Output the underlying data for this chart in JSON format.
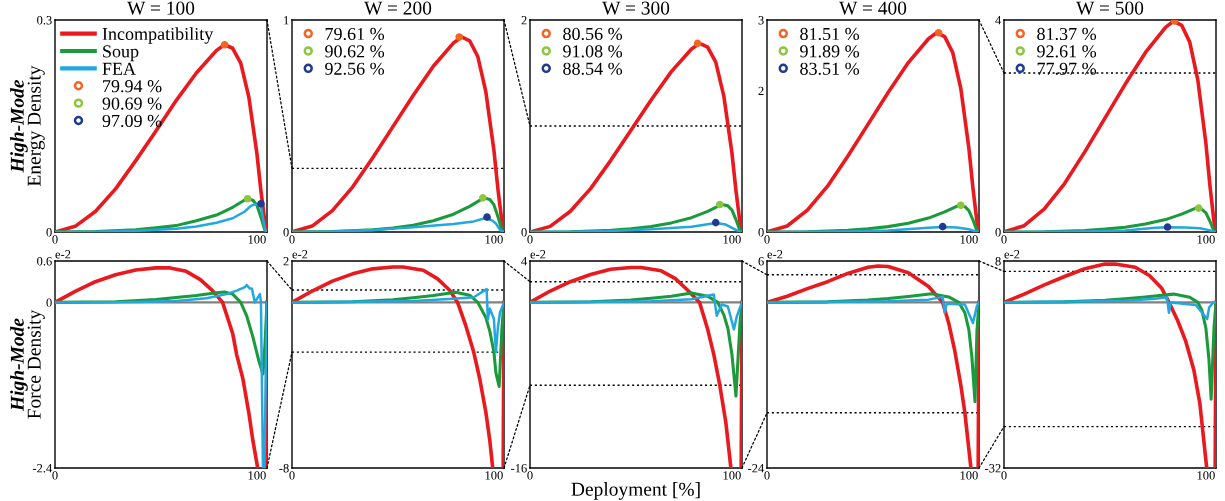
{
  "chart_data": [
    {
      "type": "line",
      "title": "W = 100",
      "ylabel": "High-Mode\nEnergy Density",
      "xlim": [
        0,
        105
      ],
      "xticks": [
        0,
        100
      ],
      "ylim": [
        0,
        0.3
      ],
      "yticks": [
        0,
        0.3
      ],
      "legend": "top left",
      "series": [
        {
          "name": "Incompatibility",
          "color": "#e8191f",
          "x": [
            0,
            10,
            20,
            30,
            40,
            50,
            60,
            70,
            80,
            84,
            88,
            92,
            96,
            100,
            102,
            104,
            105
          ],
          "values": [
            0,
            0.008,
            0.029,
            0.061,
            0.101,
            0.143,
            0.186,
            0.225,
            0.257,
            0.265,
            0.26,
            0.239,
            0.191,
            0.111,
            0.058,
            0.013,
            0
          ]
        },
        {
          "name": "Soup",
          "color": "#1a9a3a",
          "x": [
            0,
            20,
            40,
            50,
            60,
            70,
            80,
            88,
            95,
            98,
            100,
            102,
            104,
            105
          ],
          "values": [
            0,
            0.0005,
            0.003,
            0.006,
            0.009,
            0.016,
            0.024,
            0.035,
            0.047,
            0.045,
            0.038,
            0.021,
            0.002,
            0
          ]
        },
        {
          "name": "FEA",
          "color": "#22a7e0",
          "x": [
            0,
            20,
            40,
            60,
            70,
            80,
            88,
            94,
            97,
            99,
            101,
            102,
            103,
            104,
            105
          ],
          "values": [
            0,
            0.0002,
            0.0016,
            0.0047,
            0.0078,
            0.013,
            0.0195,
            0.029,
            0.037,
            0.039,
            0.039,
            0.036,
            0.02,
            0.004,
            0
          ]
        },
        {
          "name": "79.94 %",
          "type": "scatter",
          "marker": "circle",
          "color": "#f26522",
          "x": [
            84
          ],
          "values": [
            0.265
          ]
        },
        {
          "name": "90.69 %",
          "type": "scatter",
          "marker": "circle",
          "color": "#8cc63f",
          "x": [
            95.4
          ],
          "values": [
            0.047
          ]
        },
        {
          "name": "97.09 %",
          "type": "scatter",
          "marker": "circle",
          "color": "#1f3a93",
          "x": [
            102
          ],
          "values": [
            0.04
          ]
        }
      ]
    },
    {
      "type": "line",
      "title": "W = 200",
      "xlim": [
        0,
        105
      ],
      "xticks": [
        0,
        100
      ],
      "ylim": [
        0,
        1
      ],
      "yticks": [
        0,
        1
      ],
      "legend": "top left",
      "ref_lines": [
        {
          "axis": "y",
          "value": 0.3,
          "color": "#000000",
          "line_style": "dotted"
        }
      ],
      "series": [
        {
          "color": "#e8191f",
          "x": [
            0,
            10,
            20,
            30,
            40,
            50,
            60,
            70,
            80,
            84,
            88,
            92,
            96,
            100,
            102,
            104,
            105
          ],
          "values": [
            0,
            0.028,
            0.101,
            0.212,
            0.35,
            0.497,
            0.644,
            0.782,
            0.892,
            0.92,
            0.902,
            0.828,
            0.662,
            0.386,
            0.202,
            0.046,
            0
          ]
        },
        {
          "color": "#1a9a3a",
          "x": [
            0,
            20,
            40,
            50,
            60,
            70,
            80,
            88,
            95,
            98,
            100,
            102,
            104,
            105
          ],
          "values": [
            0,
            0.002,
            0.01,
            0.019,
            0.032,
            0.053,
            0.084,
            0.121,
            0.161,
            0.153,
            0.129,
            0.072,
            0.008,
            0
          ]
        },
        {
          "color": "#22a7e0",
          "x": [
            0,
            20,
            40,
            60,
            80,
            90,
            96,
            99,
            101,
            103,
            105
          ],
          "values": [
            0,
            0.002,
            0.01,
            0.022,
            0.038,
            0.05,
            0.066,
            0.055,
            0.04,
            0.01,
            0
          ]
        },
        {
          "name": "79.61 %",
          "type": "scatter",
          "marker": "circle",
          "color": "#f26522",
          "x": [
            82.8
          ],
          "values": [
            0.92
          ]
        },
        {
          "name": "90.62 %",
          "type": "scatter",
          "marker": "circle",
          "color": "#8cc63f",
          "x": [
            94.5
          ],
          "values": [
            0.161
          ]
        },
        {
          "name": "92.56 %",
          "type": "scatter",
          "marker": "circle",
          "color": "#1f3a93",
          "x": [
            96.6
          ],
          "values": [
            0.07
          ]
        }
      ]
    },
    {
      "type": "line",
      "title": "W = 300",
      "xlim": [
        0,
        105
      ],
      "xticks": [
        0,
        100
      ],
      "ylim": [
        0,
        2
      ],
      "yticks": [
        0,
        2
      ],
      "legend": "top left",
      "ref_lines": [
        {
          "axis": "y",
          "value": 1,
          "color": "#000000",
          "line_style": "dotted"
        }
      ],
      "series": [
        {
          "color": "#e8191f",
          "x": [
            0,
            10,
            20,
            30,
            40,
            50,
            60,
            70,
            80,
            84,
            88,
            92,
            96,
            100,
            102,
            104,
            105
          ],
          "values": [
            0,
            0.053,
            0.196,
            0.409,
            0.676,
            0.961,
            1.246,
            1.513,
            1.727,
            1.78,
            1.744,
            1.602,
            1.282,
            0.748,
            0.392,
            0.089,
            0
          ]
        },
        {
          "color": "#1a9a3a",
          "x": [
            0,
            20,
            40,
            50,
            60,
            70,
            80,
            88,
            95,
            98,
            100,
            102,
            104,
            105
          ],
          "values": [
            0,
            0.003,
            0.016,
            0.031,
            0.052,
            0.086,
            0.135,
            0.195,
            0.26,
            0.247,
            0.208,
            0.117,
            0.013,
            0
          ]
        },
        {
          "color": "#22a7e0",
          "x": [
            0,
            20,
            40,
            60,
            80,
            92,
            97,
            101,
            104,
            105
          ],
          "values": [
            0,
            0.002,
            0.01,
            0.025,
            0.05,
            0.085,
            0.07,
            0.03,
            0.002,
            0
          ]
        },
        {
          "name": "80.56 %",
          "type": "scatter",
          "marker": "circle",
          "color": "#f26522",
          "x": [
            83
          ],
          "values": [
            1.78
          ]
        },
        {
          "name": "91.08 %",
          "type": "scatter",
          "marker": "circle",
          "color": "#8cc63f",
          "x": [
            94
          ],
          "values": [
            0.26
          ]
        },
        {
          "name": "88.54 %",
          "type": "scatter",
          "marker": "circle",
          "color": "#1f3a93",
          "x": [
            92
          ],
          "values": [
            0.088
          ]
        }
      ]
    },
    {
      "type": "line",
      "title": "W = 400",
      "xlim": [
        0,
        105
      ],
      "xticks": [
        0,
        100
      ],
      "ylim": [
        0,
        3
      ],
      "yticks": [
        0,
        2,
        3
      ],
      "legend": "top left",
      "series": [
        {
          "color": "#e8191f",
          "x": [
            0,
            10,
            20,
            30,
            40,
            50,
            60,
            70,
            80,
            84,
            88,
            92,
            96,
            100,
            102,
            104,
            105
          ],
          "values": [
            0,
            0.085,
            0.31,
            0.649,
            1.072,
            1.523,
            1.974,
            2.397,
            2.735,
            2.82,
            2.764,
            2.538,
            2.03,
            1.184,
            0.62,
            0.141,
            0
          ]
        },
        {
          "color": "#1a9a3a",
          "x": [
            0,
            20,
            40,
            50,
            60,
            70,
            80,
            88,
            95,
            98,
            100,
            102,
            104,
            105
          ],
          "values": [
            0,
            0.004,
            0.023,
            0.045,
            0.076,
            0.125,
            0.197,
            0.284,
            0.378,
            0.359,
            0.302,
            0.17,
            0.019,
            0
          ]
        },
        {
          "color": "#22a7e0",
          "x": [
            0,
            20,
            40,
            60,
            80,
            87,
            94,
            100,
            103,
            105
          ],
          "values": [
            0,
            0.002,
            0.008,
            0.02,
            0.06,
            0.072,
            0.065,
            0.04,
            0.01,
            0
          ]
        },
        {
          "name": "81.51 %",
          "type": "scatter",
          "marker": "circle",
          "color": "#f26522",
          "x": [
            85
          ],
          "values": [
            2.82
          ]
        },
        {
          "name": "91.89 %",
          "type": "scatter",
          "marker": "circle",
          "color": "#8cc63f",
          "x": [
            96
          ],
          "values": [
            0.378
          ]
        },
        {
          "name": "83.51 %",
          "type": "scatter",
          "marker": "circle",
          "color": "#1f3a93",
          "x": [
            87
          ],
          "values": [
            0.076
          ]
        }
      ]
    },
    {
      "type": "line",
      "title": "W = 500",
      "xlim": [
        0,
        105
      ],
      "xticks": [
        0,
        100
      ],
      "ylim": [
        0,
        4
      ],
      "yticks": [
        0,
        4
      ],
      "legend": "top left",
      "ref_lines": [
        {
          "axis": "y",
          "value": 3,
          "color": "#000000",
          "line_style": "dotted"
        }
      ],
      "series": [
        {
          "color": "#e8191f",
          "x": [
            0,
            10,
            20,
            30,
            40,
            50,
            60,
            70,
            80,
            84,
            88,
            92,
            96,
            100,
            102,
            104,
            105
          ],
          "values": [
            0,
            0.119,
            0.438,
            0.915,
            1.512,
            2.149,
            2.786,
            3.383,
            3.861,
            3.98,
            3.9,
            3.582,
            2.866,
            1.672,
            0.876,
            0.199,
            0
          ]
        },
        {
          "color": "#1a9a3a",
          "x": [
            0,
            20,
            40,
            50,
            60,
            70,
            80,
            88,
            95,
            98,
            100,
            102,
            104,
            105
          ],
          "values": [
            0,
            0.005,
            0.027,
            0.054,
            0.09,
            0.149,
            0.234,
            0.338,
            0.45,
            0.428,
            0.36,
            0.203,
            0.023,
            0
          ]
        },
        {
          "color": "#22a7e0",
          "x": [
            0,
            20,
            40,
            60,
            75,
            81,
            90,
            97,
            101,
            104,
            105
          ],
          "values": [
            0,
            0.003,
            0.01,
            0.03,
            0.08,
            0.09,
            0.085,
            0.07,
            0.04,
            0.005,
            0
          ]
        },
        {
          "name": "81.37 %",
          "type": "scatter",
          "marker": "circle",
          "color": "#f26522",
          "x": [
            84.5
          ],
          "values": [
            3.98
          ]
        },
        {
          "name": "92.61 %",
          "type": "scatter",
          "marker": "circle",
          "color": "#8cc63f",
          "x": [
            96.4
          ],
          "values": [
            0.45
          ]
        },
        {
          "name": "77.97 %",
          "type": "scatter",
          "marker": "circle",
          "color": "#1f3a93",
          "x": [
            81
          ],
          "values": [
            0.093
          ]
        }
      ]
    },
    {
      "type": "line",
      "ylabel": "High-Mode\nForce Density",
      "xlim": [
        0,
        105
      ],
      "xticks": [
        0,
        100
      ],
      "ylim": [
        -2.4,
        0.6
      ],
      "yticks": [
        -2.4,
        0,
        0.6
      ],
      "annotations": [
        "e-2"
      ],
      "ref_lines": [
        {
          "axis": "y",
          "value": 0,
          "color": "#808080",
          "line_style": "solid"
        }
      ],
      "series": [
        {
          "color": "#e8191f",
          "x": [
            0,
            10,
            20,
            30,
            40,
            50,
            57,
            65,
            72,
            78,
            83,
            88,
            90,
            93,
            96,
            98,
            100.4,
            102,
            104.6,
            105
          ],
          "values": [
            0,
            0.16,
            0.3,
            0.4,
            0.47,
            0.5,
            0.5,
            0.45,
            0.33,
            0.17,
            0,
            -0.45,
            -0.76,
            -1.1,
            -1.6,
            -2.0,
            -2.4,
            null,
            -2.4,
            0
          ]
        },
        {
          "color": "#1a9a3a",
          "x": [
            0,
            30,
            50,
            60,
            70,
            80,
            84,
            88,
            92,
            95,
            98,
            101,
            103,
            104,
            105
          ],
          "values": [
            0,
            0.01,
            0.04,
            0.07,
            0.1,
            0.14,
            0.15,
            0.12,
            0,
            -0.2,
            -0.5,
            -0.85,
            -1.04,
            -0.6,
            0
          ]
        },
        {
          "color": "#22a7e0",
          "x": [
            0,
            40,
            60,
            75,
            85,
            90,
            94,
            95,
            96.5,
            97.5,
            99,
            100,
            101.5,
            102,
            103,
            103.7,
            104.3,
            105
          ],
          "values": [
            0,
            0.005,
            0.02,
            0.06,
            0.12,
            0.17,
            0.22,
            0.25,
            0.2,
            0.2,
            0,
            0.05,
            0.12,
            0,
            -2.4,
            -2.4,
            -1.3,
            0
          ]
        }
      ]
    },
    {
      "type": "line",
      "xlim": [
        0,
        105
      ],
      "xticks": [
        0,
        100
      ],
      "ylim": [
        -8,
        2
      ],
      "yticks": [
        -8,
        2
      ],
      "annotations": [
        "e-2"
      ],
      "ref_lines": [
        {
          "axis": "y",
          "value": 0,
          "color": "#808080",
          "line_style": "solid"
        },
        {
          "axis": "y",
          "value": 0.6,
          "color": "#000000",
          "line_style": "dotted"
        },
        {
          "axis": "y",
          "value": -2.4,
          "color": "#000000",
          "line_style": "dotted"
        }
      ],
      "series": [
        {
          "color": "#e8191f",
          "x": [
            0,
            10,
            20,
            30,
            40,
            50,
            55,
            65,
            72,
            78,
            82,
            86,
            90,
            93,
            96,
            98,
            99.4,
            102,
            104.6,
            105
          ],
          "values": [
            0,
            0.55,
            1.03,
            1.38,
            1.62,
            1.71,
            1.71,
            1.55,
            1.15,
            0.6,
            0,
            -1.1,
            -2.4,
            -3.7,
            -5.3,
            -6.7,
            -8,
            null,
            -8,
            0
          ]
        },
        {
          "color": "#1a9a3a",
          "x": [
            0,
            30,
            50,
            60,
            70,
            81,
            88,
            92,
            96,
            98,
            100,
            101,
            102.6,
            104,
            105
          ],
          "values": [
            0,
            0.03,
            0.13,
            0.22,
            0.33,
            0.49,
            0.35,
            0,
            -0.73,
            -1.4,
            -2.4,
            -3.4,
            -4.06,
            -1.2,
            0
          ]
        },
        {
          "color": "#22a7e0",
          "x": [
            0,
            60,
            80,
            90,
            96.4,
            97,
            98,
            100,
            101,
            102,
            103,
            105
          ],
          "values": [
            0,
            0.07,
            0.18,
            0.25,
            0.64,
            -0.83,
            -0.3,
            -0.8,
            -2.42,
            -1.2,
            -0.5,
            0
          ]
        }
      ]
    },
    {
      "type": "line",
      "xlabel": "Deployment [%]",
      "xlim": [
        0,
        105
      ],
      "xticks": [
        0,
        100
      ],
      "ylim": [
        -16,
        4
      ],
      "yticks": [
        -16,
        4
      ],
      "annotations": [
        "e-2"
      ],
      "ref_lines": [
        {
          "axis": "y",
          "value": 0,
          "color": "#808080",
          "line_style": "solid"
        },
        {
          "axis": "y",
          "value": 2,
          "color": "#000000",
          "line_style": "dotted"
        },
        {
          "axis": "y",
          "value": -8,
          "color": "#000000",
          "line_style": "dotted"
        }
      ],
      "series": [
        {
          "color": "#e8191f",
          "x": [
            0,
            10,
            20,
            30,
            40,
            50,
            55,
            65,
            72,
            78,
            84,
            88,
            91,
            94,
            97,
            99.5,
            102,
            104.6,
            105
          ],
          "values": [
            0,
            1.1,
            2.0,
            2.7,
            3.2,
            3.37,
            3.37,
            3.05,
            2.3,
            1.2,
            0,
            -2.6,
            -5,
            -8,
            -11.6,
            -16,
            null,
            -16,
            0
          ]
        },
        {
          "color": "#1a9a3a",
          "x": [
            0,
            30,
            50,
            60,
            70,
            80,
            88,
            93,
            96,
            98,
            100,
            102,
            104,
            105
          ],
          "values": [
            0,
            0.06,
            0.24,
            0.4,
            0.6,
            0.9,
            0.6,
            0,
            -1.2,
            -2.5,
            -5,
            -9.05,
            -2,
            0
          ]
        },
        {
          "color": "#22a7e0",
          "x": [
            0,
            60,
            80,
            91,
            92.5,
            95,
            98,
            101,
            102.5,
            105
          ],
          "values": [
            0,
            0.1,
            0.3,
            0.76,
            -1.3,
            -0.2,
            -0.4,
            -2.6,
            -1.3,
            0
          ]
        }
      ]
    },
    {
      "type": "line",
      "xlim": [
        0,
        105
      ],
      "xticks": [
        0,
        100
      ],
      "ylim": [
        -24,
        6
      ],
      "yticks": [
        -24,
        6
      ],
      "annotations": [
        "e-2"
      ],
      "ref_lines": [
        {
          "axis": "y",
          "value": 0,
          "color": "#808080",
          "line_style": "solid"
        },
        {
          "axis": "y",
          "value": 4,
          "color": "#000000",
          "line_style": "dotted"
        },
        {
          "axis": "y",
          "value": -16,
          "color": "#000000",
          "line_style": "dotted"
        }
      ],
      "series": [
        {
          "color": "#e8191f",
          "x": [
            0,
            10,
            20,
            30,
            40,
            50,
            55,
            60,
            70,
            80,
            87,
            90,
            93,
            96,
            98,
            101,
            102.5,
            104.6,
            105
          ],
          "values": [
            0,
            0.9,
            2.0,
            3.0,
            4.2,
            5.1,
            5.28,
            5.2,
            4.3,
            2.3,
            0,
            -3,
            -7,
            -12,
            -16,
            -24,
            null,
            -24,
            0
          ]
        },
        {
          "color": "#1a9a3a",
          "x": [
            0,
            30,
            50,
            60,
            70,
            81.6,
            90,
            95,
            98,
            100,
            101.5,
            103,
            104,
            105
          ],
          "values": [
            0,
            0.08,
            0.33,
            0.55,
            0.85,
            1.25,
            0.8,
            0,
            -1.5,
            -4,
            -8,
            -14.4,
            -4,
            0
          ]
        },
        {
          "color": "#22a7e0",
          "x": [
            0,
            60,
            80,
            87,
            88,
            89,
            98,
            102,
            104,
            105
          ],
          "values": [
            0,
            0.15,
            0.4,
            0.8,
            -1.5,
            -0.2,
            -0.3,
            -3,
            -0.5,
            0
          ]
        }
      ]
    },
    {
      "type": "line",
      "xlim": [
        0,
        105
      ],
      "xticks": [
        0,
        100
      ],
      "ylim": [
        -32,
        8
      ],
      "yticks": [
        -32,
        8
      ],
      "annotations": [
        "e-2"
      ],
      "ref_lines": [
        {
          "axis": "y",
          "value": 0,
          "color": "#808080",
          "line_style": "solid"
        },
        {
          "axis": "y",
          "value": 6,
          "color": "#000000",
          "line_style": "dotted"
        },
        {
          "axis": "y",
          "value": -24,
          "color": "#000000",
          "line_style": "dotted"
        }
      ],
      "series": [
        {
          "color": "#e8191f",
          "x": [
            0,
            10,
            20,
            30,
            40,
            50,
            55,
            65,
            72,
            78,
            81.7,
            86,
            90,
            94,
            97,
            100.4,
            102,
            104.6,
            105
          ],
          "values": [
            0,
            1.6,
            3.4,
            5.0,
            6.5,
            7.4,
            7.42,
            6.8,
            5.2,
            2.8,
            0,
            -3.5,
            -7.5,
            -13,
            -19.5,
            -32,
            null,
            -32,
            0
          ]
        },
        {
          "color": "#1a9a3a",
          "x": [
            0,
            30,
            50,
            60,
            70,
            84,
            92,
            96,
            98,
            100,
            101.5,
            102.6,
            104,
            105
          ],
          "values": [
            0,
            0.1,
            0.4,
            0.7,
            1.05,
            1.6,
            1.0,
            0,
            -1.5,
            -5,
            -11,
            -18.7,
            -5,
            0
          ]
        },
        {
          "color": "#22a7e0",
          "x": [
            0,
            60,
            75,
            80.7,
            81.7,
            82.5,
            95,
            100.6,
            101.6,
            103.6,
            105
          ],
          "values": [
            0,
            0.3,
            0.7,
            1.0,
            -2.0,
            0,
            -0.5,
            -3.2,
            -1.0,
            0,
            0
          ]
        }
      ]
    }
  ]
}
